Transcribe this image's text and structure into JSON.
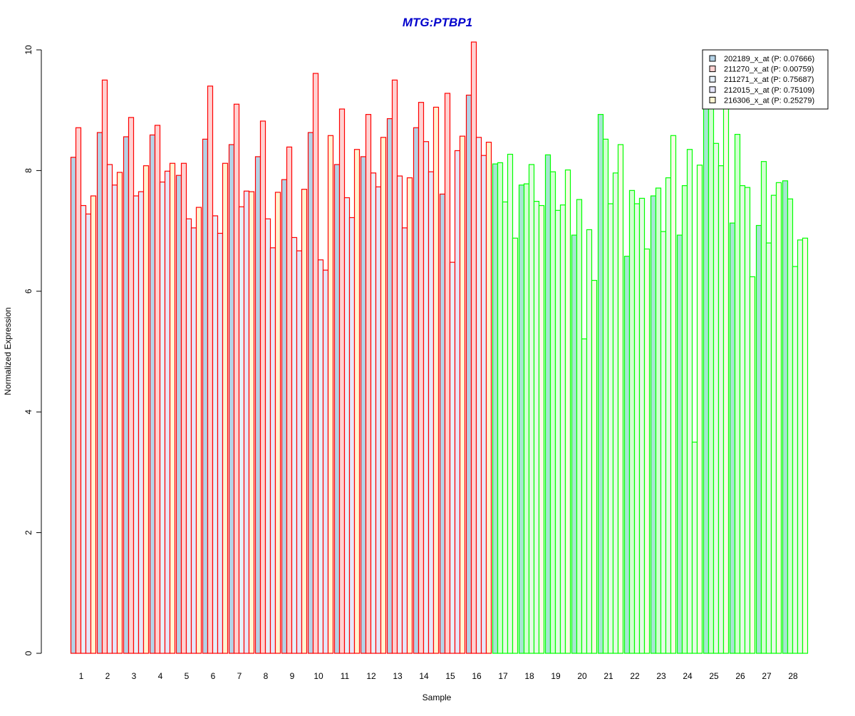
{
  "chart_data": {
    "type": "bar",
    "title": "MTG:PTBP1",
    "xlabel": "Sample",
    "ylabel": "Normalized Expression",
    "ylim": [
      0,
      10
    ],
    "yticks": [
      0,
      2,
      4,
      6,
      8,
      10
    ],
    "grid": false,
    "legend_position": "top-right",
    "categories": [
      "1",
      "2",
      "3",
      "4",
      "5",
      "6",
      "7",
      "8",
      "9",
      "10",
      "11",
      "12",
      "13",
      "14",
      "15",
      "16",
      "17",
      "18",
      "19",
      "20",
      "21",
      "22",
      "23",
      "24",
      "25",
      "26",
      "27",
      "28"
    ],
    "group_colors": {
      "samples_1_16": "#ff0000",
      "samples_17_28": "#00ff00"
    },
    "series": [
      {
        "name": "202189_x_at (P: 0.07666)",
        "fill": "#b4d2e6",
        "fill_alt": "#a6e6d2",
        "values": [
          8.22,
          8.63,
          8.56,
          8.59,
          7.92,
          8.52,
          8.43,
          8.23,
          7.85,
          8.63,
          8.1,
          8.23,
          8.86,
          8.71,
          7.61,
          9.25,
          8.11,
          7.76,
          8.26,
          6.93,
          8.93,
          6.58,
          7.58,
          6.93,
          9.1,
          7.13,
          7.09,
          7.83
        ]
      },
      {
        "name": "211270_x_at (P: 0.00759)",
        "fill": "#ffd2d2",
        "fill_alt": "#d2ffd2",
        "values": [
          8.71,
          9.5,
          8.88,
          8.75,
          8.12,
          9.4,
          9.1,
          8.82,
          8.39,
          9.61,
          9.02,
          8.93,
          9.5,
          9.13,
          9.28,
          10.13,
          8.13,
          7.78,
          7.98,
          7.52,
          8.52,
          7.67,
          7.71,
          7.75,
          9.45,
          8.6,
          8.15,
          7.53
        ]
      },
      {
        "name": "211271_x_at (P: 0.75687)",
        "fill": "#e6f0fa",
        "fill_alt": "#e6fae6",
        "values": [
          7.42,
          8.1,
          7.58,
          7.81,
          7.2,
          7.25,
          7.4,
          7.2,
          6.89,
          6.52,
          7.55,
          7.96,
          7.91,
          8.48,
          6.48,
          8.55,
          7.48,
          8.1,
          7.34,
          5.21,
          7.45,
          7.45,
          6.99,
          8.35,
          8.45,
          7.75,
          6.8,
          6.41
        ]
      },
      {
        "name": "212015_x_at (P: 0.75109)",
        "fill": "#e6e6fa",
        "fill_alt": "#e6fae6",
        "values": [
          7.28,
          7.76,
          7.65,
          7.99,
          7.05,
          6.96,
          7.66,
          6.72,
          6.67,
          6.35,
          7.22,
          7.73,
          7.05,
          7.98,
          8.33,
          8.25,
          8.27,
          7.49,
          7.43,
          7.02,
          7.96,
          7.54,
          7.88,
          3.5,
          8.08,
          7.72,
          7.59,
          6.85
        ]
      },
      {
        "name": "216306_x_at (P: 0.25279)",
        "fill": "#fff5d2",
        "fill_alt": "#fafae6",
        "values": [
          7.58,
          7.97,
          8.08,
          8.12,
          7.39,
          8.12,
          7.65,
          7.64,
          7.69,
          8.58,
          8.35,
          8.55,
          7.88,
          9.05,
          8.57,
          8.47,
          6.88,
          7.42,
          8.01,
          6.18,
          8.43,
          6.7,
          8.58,
          8.09,
          9.05,
          6.24,
          7.8,
          6.88
        ]
      }
    ]
  }
}
